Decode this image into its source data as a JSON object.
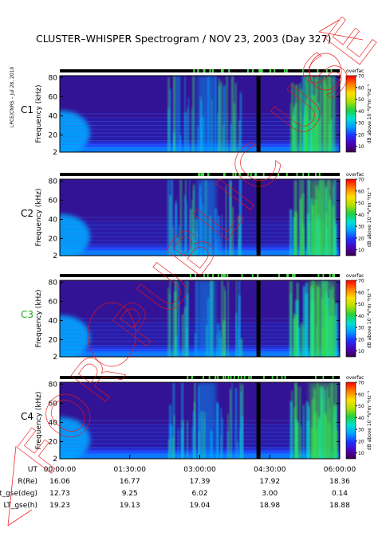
{
  "title": "CLUSTER–WHISPER Spectrogram / NOV 23, 2003 (Day 327)",
  "side_label": "LPCE/CNRS – Jul 28, 2010",
  "watermark": "FOR PUBLIC USE",
  "legend_word": "overfac",
  "chart_data": {
    "type": "heatmap",
    "panels": [
      {
        "name": "C1",
        "color": "#000000"
      },
      {
        "name": "C2",
        "color": "#000000"
      },
      {
        "name": "C3",
        "color": "#1aaa1a"
      },
      {
        "name": "C4",
        "color": "#000000"
      }
    ],
    "ylabel": "Frequency (kHz)",
    "yticks": [
      "2",
      "20",
      "40",
      "60",
      "80"
    ],
    "ylim": [
      2,
      82
    ],
    "colorbar": {
      "label": "dB above 10⁻⁸V²m⁻²Hz⁻¹",
      "ticks": [
        "10",
        "20",
        "30",
        "40",
        "50",
        "60",
        "70"
      ],
      "range": [
        5,
        70
      ],
      "colors": [
        "#3a004a",
        "#4b00b4",
        "#1e32ff",
        "#00a0ff",
        "#00e0d0",
        "#20d040",
        "#b0e000",
        "#ffe000",
        "#ff8000",
        "#ff0000"
      ]
    },
    "x_rows": [
      {
        "label": "UT",
        "values": [
          "00:00:00",
          "01:30:00",
          "03:00:00",
          "04:30:00",
          "06:00:00"
        ]
      },
      {
        "label": "R(Re)",
        "values": [
          "16.06",
          "16.77",
          "17.39",
          "17.92",
          "18.36"
        ]
      },
      {
        "label": "Lat_gse(deg)",
        "values": [
          "12.73",
          "9.25",
          "6.02",
          "3.00",
          "0.14"
        ]
      },
      {
        "label": "LT_gse(h)",
        "values": [
          "19.23",
          "19.13",
          "19.04",
          "18.98",
          "18.88"
        ]
      }
    ],
    "xlim_hours": [
      0,
      6
    ],
    "data_gap_hours": 4.25
  }
}
